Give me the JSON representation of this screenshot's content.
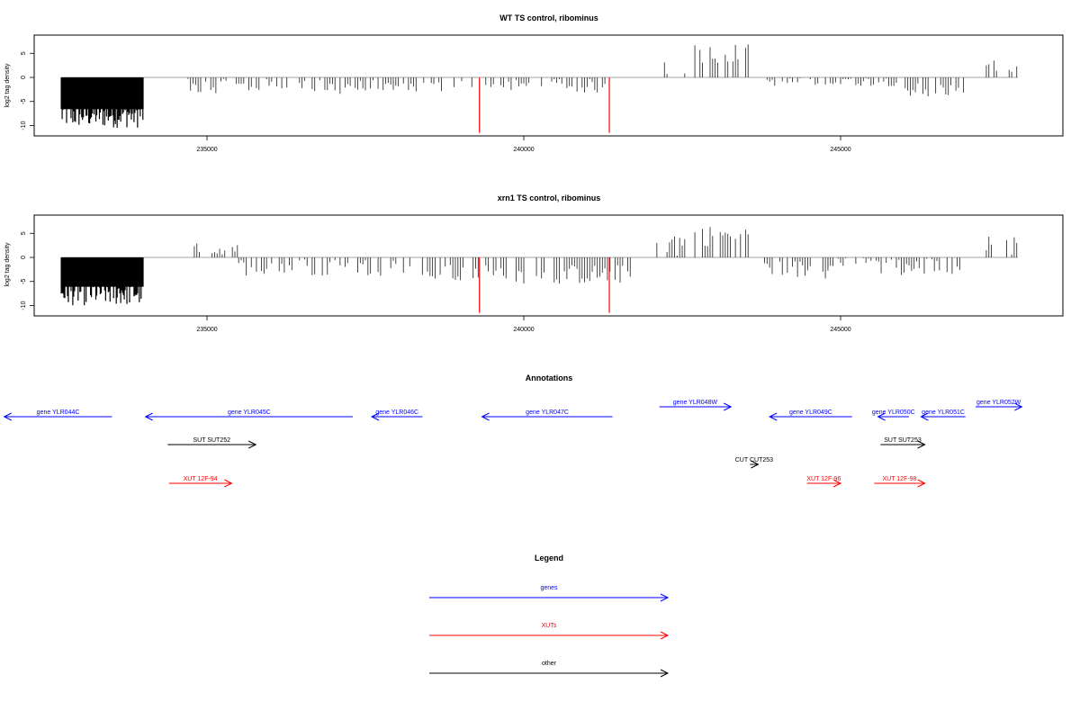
{
  "chart_data": [
    {
      "type": "bar",
      "title": "WT TS control, ribominus",
      "ylabel": "log2 tag density",
      "xlim": [
        232000,
        248000
      ],
      "ylim": [
        -12,
        9
      ],
      "x_ticks": [
        235000,
        240000,
        245000
      ],
      "x_tick_labels": [
        "235000",
        "240000",
        "245000"
      ],
      "y_ticks": [
        -10,
        -5,
        0,
        5
      ],
      "y_tick_labels": [
        "-10",
        "-5",
        "0",
        "5"
      ],
      "grid": false,
      "baseline": 0,
      "highlight_lines": {
        "color": "#ff0000",
        "x": [
          239300,
          241350
        ],
        "y_range": [
          0,
          -11.5
        ]
      },
      "density_profile": [
        {
          "from": 232700,
          "to": 234000,
          "mean": -7.5,
          "spread": 3,
          "fill": true
        },
        {
          "from": 234700,
          "to": 236500,
          "mean": -1.8,
          "spread": 1.5
        },
        {
          "from": 236500,
          "to": 239200,
          "mean": -2.0,
          "spread": 1.5
        },
        {
          "from": 239400,
          "to": 241300,
          "mean": -1.8,
          "spread": 1.5
        },
        {
          "from": 242100,
          "to": 242550,
          "mean": 2.8,
          "spread": 2.5
        },
        {
          "from": 242700,
          "to": 243600,
          "mean": 5.0,
          "spread": 2.0
        },
        {
          "from": 243800,
          "to": 245900,
          "mean": -0.8,
          "spread": 1.0
        },
        {
          "from": 245900,
          "to": 246950,
          "mean": -2.5,
          "spread": 1.5
        },
        {
          "from": 247300,
          "to": 247800,
          "mean": 2.0,
          "spread": 1.5
        }
      ]
    },
    {
      "type": "bar",
      "title": "xrn1 TS control, ribominus",
      "ylabel": "log2 tag density",
      "xlim": [
        232000,
        248000
      ],
      "ylim": [
        -12,
        9
      ],
      "x_ticks": [
        235000,
        240000,
        245000
      ],
      "x_tick_labels": [
        "235000",
        "240000",
        "245000"
      ],
      "y_ticks": [
        -10,
        -5,
        0,
        5
      ],
      "y_tick_labels": [
        "-10",
        "-5",
        "0",
        "5"
      ],
      "grid": false,
      "baseline": 0,
      "highlight_lines": {
        "color": "#ff0000",
        "x": [
          239300,
          241350
        ],
        "y_range": [
          0,
          -11.5
        ]
      },
      "density_profile": [
        {
          "from": 232700,
          "to": 234000,
          "mean": -7.0,
          "spread": 3,
          "fill": true
        },
        {
          "from": 234800,
          "to": 235500,
          "mean": 1.5,
          "spread": 1.5
        },
        {
          "from": 235500,
          "to": 238200,
          "mean": -2.0,
          "spread": 1.8
        },
        {
          "from": 238200,
          "to": 241700,
          "mean": -3.5,
          "spread": 2.0
        },
        {
          "from": 242100,
          "to": 242550,
          "mean": 3.0,
          "spread": 3.0
        },
        {
          "from": 242700,
          "to": 243600,
          "mean": 4.5,
          "spread": 2.2
        },
        {
          "from": 243800,
          "to": 244800,
          "mean": -2.5,
          "spread": 2.0
        },
        {
          "from": 244800,
          "to": 245600,
          "mean": -0.5,
          "spread": 1.5
        },
        {
          "from": 245600,
          "to": 246950,
          "mean": -2.0,
          "spread": 2.0
        },
        {
          "from": 247300,
          "to": 247800,
          "mean": 2.5,
          "spread": 2.0
        }
      ]
    }
  ],
  "annotations": {
    "title": "Annotations",
    "items": [
      {
        "label": "gene YLR044C",
        "color": "#0000ff",
        "from": 233500,
        "to": 231800,
        "row": 0
      },
      {
        "label": "gene YLR045C",
        "color": "#0000ff",
        "from": 237300,
        "to": 234030,
        "row": 0
      },
      {
        "label": "gene YLR046C",
        "color": "#0000ff",
        "from": 238400,
        "to": 237600,
        "row": 0
      },
      {
        "label": "gene YLR047C",
        "color": "#0000ff",
        "from": 241400,
        "to": 239340,
        "row": 0
      },
      {
        "label": "gene YLR048W",
        "color": "#0000ff",
        "from": 242140,
        "to": 243270,
        "row": -1
      },
      {
        "label": "gene YLR049C",
        "color": "#0000ff",
        "from": 245180,
        "to": 243880,
        "row": 0
      },
      {
        "label": "gene YLR050C",
        "color": "#0000ff",
        "from": 246080,
        "to": 245590,
        "row": 0
      },
      {
        "label": "gene YLR051C",
        "color": "#0000ff",
        "from": 246970,
        "to": 246270,
        "row": 0
      },
      {
        "label": "gene YLR052W",
        "color": "#0000ff",
        "from": 247130,
        "to": 247860,
        "row": -1
      },
      {
        "label": "SUT SUT252",
        "color": "#000000",
        "from": 234380,
        "to": 235770,
        "row": 1
      },
      {
        "label": "SUT SUT253",
        "color": "#000000",
        "from": 245630,
        "to": 246330,
        "row": 1
      },
      {
        "label": "CUT CUT253",
        "color": "#000000",
        "from": 243570,
        "to": 243700,
        "row": 2
      },
      {
        "label": "XUT 12F-94",
        "color": "#ff0000",
        "from": 234400,
        "to": 235390,
        "row": 3
      },
      {
        "label": "XUT 12F-96",
        "color": "#ff0000",
        "from": 244470,
        "to": 245000,
        "row": 3
      },
      {
        "label": "XUT 12F-98",
        "color": "#ff0000",
        "from": 245530,
        "to": 246330,
        "row": 3
      }
    ]
  },
  "legend": {
    "title": "Legend",
    "items": [
      {
        "label": "genes",
        "color": "#0000ff"
      },
      {
        "label": "XUTs",
        "color": "#ff0000"
      },
      {
        "label": "other",
        "color": "#000000"
      }
    ]
  }
}
